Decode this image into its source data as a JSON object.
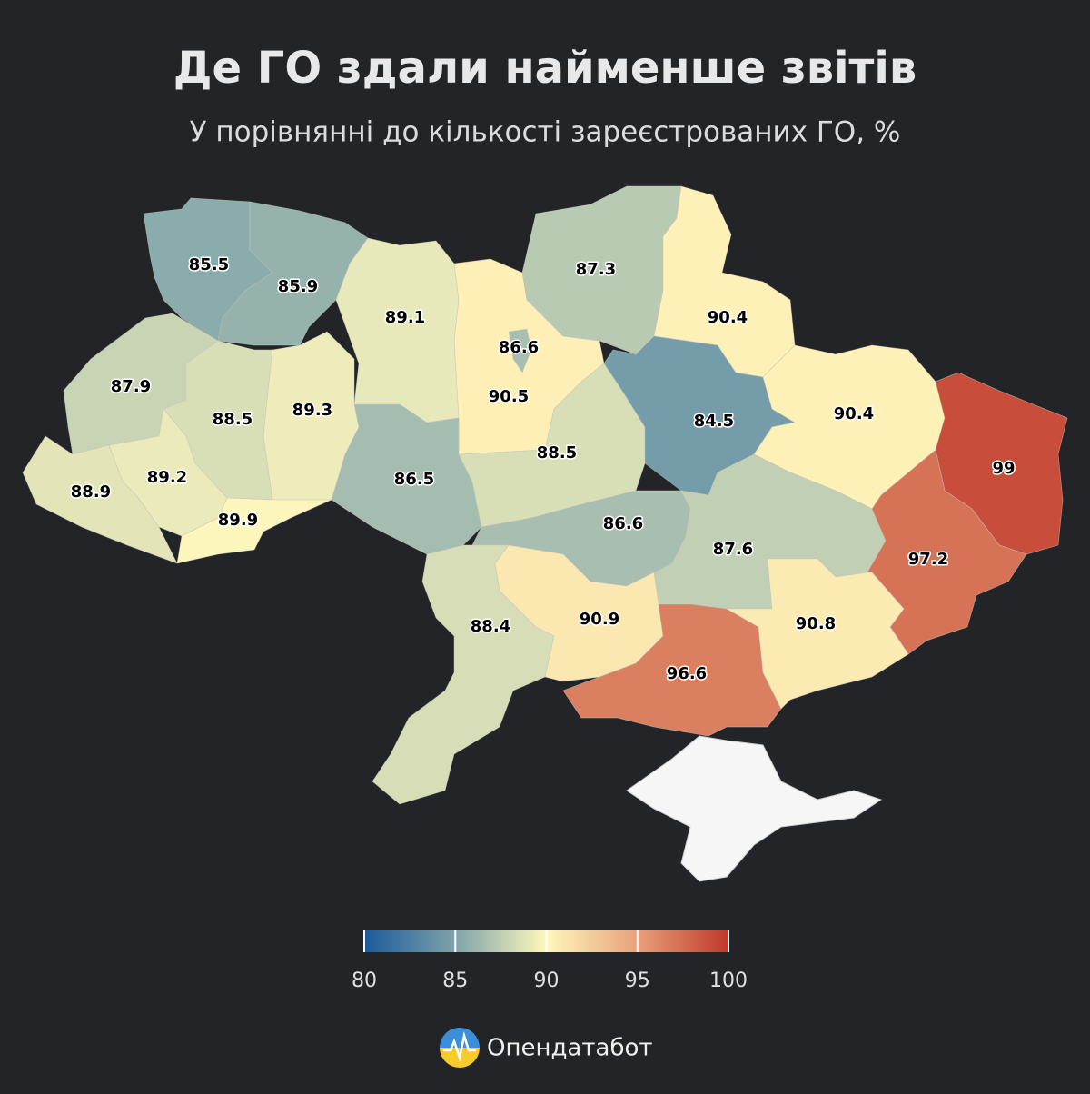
{
  "chart_data": {
    "type": "choropleth",
    "title": "Де ГО здали найменше звітів",
    "subtitle": "У порівнянні до кількості зареєстрованих ГО, %",
    "values": [
      85.5,
      85.9,
      89.1,
      90.5,
      86.6,
      87.3,
      90.4,
      87.9,
      88.5,
      89.3,
      88.9,
      89.2,
      89.9,
      86.5,
      88.5,
      84.5,
      90.4,
      99,
      86.6,
      87.6,
      97.2,
      88.4,
      90.9,
      96.6,
      90.8
    ],
    "clim": [
      80,
      100
    ],
    "cticks": [
      80,
      85,
      90,
      95,
      100
    ],
    "colors": [
      "#1c5a9c",
      "#7ea3aa",
      "#fff8bd",
      "#e8a07a",
      "#c0392b"
    ],
    "brand": "Опендатабот"
  }
}
